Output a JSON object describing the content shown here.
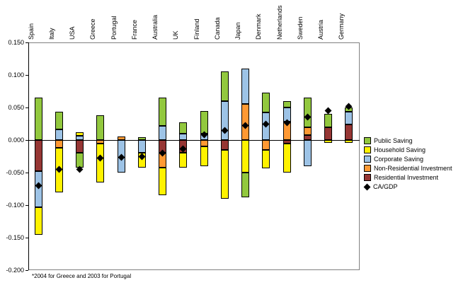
{
  "chart_data": {
    "type": "bar",
    "stacked": true,
    "title": "",
    "footnote": "*2004 for Greece and 2003 for Portugal",
    "categories": [
      "Spain",
      "Italy",
      "USA",
      "Greece",
      "Portugal",
      "France",
      "Australia",
      "UK",
      "Finland",
      "Canada",
      "Japan",
      "Denmark",
      "Netherlands",
      "Sweden",
      "Austria",
      "Germany"
    ],
    "y_axis": {
      "min": -0.2,
      "max": 0.15,
      "tick_step": 0.05,
      "tick_labels": [
        "0.150",
        "0.100",
        "0.050",
        "0.000",
        "-0.050",
        "-0.100",
        "-0.150",
        "-0.200"
      ]
    },
    "grid": false,
    "legend_position": "right",
    "series": [
      {
        "name": "Residential Investment",
        "color": "#963634",
        "values": [
          -0.048,
          0.0,
          -0.02,
          0.0,
          0.0,
          0.0,
          -0.02,
          -0.02,
          0.0,
          -0.015,
          0.0,
          0.0,
          -0.005,
          0.008,
          0.02,
          0.024
        ]
      },
      {
        "name": "Non-Residential Investment",
        "color": "#FF9933",
        "values": [
          0.0,
          -0.012,
          0.0,
          -0.005,
          0.005,
          0.0,
          -0.022,
          0.0,
          -0.01,
          0.0,
          0.055,
          -0.015,
          0.028,
          0.012,
          0.0,
          0.0
        ]
      },
      {
        "name": "Corporate Saving",
        "color": "#9DC3E6",
        "values": [
          -0.055,
          0.016,
          0.007,
          0.0,
          -0.05,
          -0.02,
          0.022,
          0.01,
          0.01,
          0.06,
          0.055,
          0.042,
          0.022,
          -0.04,
          0.0,
          0.02
        ]
      },
      {
        "name": "Household Saving",
        "color": "#FFF200",
        "values": [
          -0.043,
          -0.068,
          0.005,
          -0.06,
          0.0,
          -0.022,
          -0.043,
          -0.022,
          -0.03,
          -0.075,
          -0.05,
          -0.028,
          -0.045,
          0.0,
          -0.004,
          -0.004
        ]
      },
      {
        "name": "Public Saving",
        "color": "#92C83E",
        "values": [
          0.065,
          0.027,
          -0.022,
          0.038,
          0.0,
          0.004,
          0.043,
          0.017,
          0.035,
          0.045,
          -0.038,
          0.031,
          0.01,
          0.045,
          0.02,
          0.006
        ]
      }
    ],
    "marker_series": {
      "name": "CA/GDP",
      "shape": "diamond",
      "color": "#000000",
      "values": [
        -0.07,
        -0.045,
        -0.045,
        -0.028,
        -0.027,
        -0.025,
        -0.02,
        -0.014,
        0.008,
        0.015,
        0.022,
        0.025,
        0.027,
        0.035,
        0.045,
        0.052
      ]
    },
    "legend": [
      "Public Saving",
      "Household Saving",
      "Corporate Saving",
      "Non-Residential Investment",
      "Residential Investment",
      "CA/GDP"
    ]
  }
}
